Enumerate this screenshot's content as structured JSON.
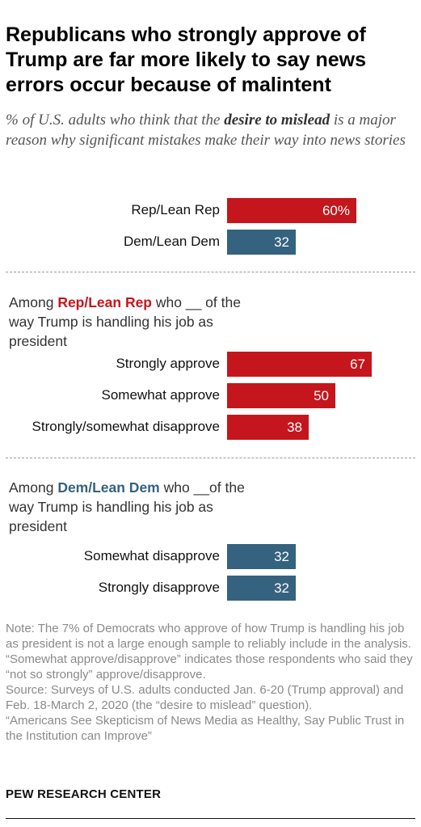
{
  "title": "Republicans who strongly approve of Trump are far more likely to say news errors occur because of malintent",
  "subtitle": {
    "before": "% of U.S. adults who think that the ",
    "emphasis": "desire to mislead",
    "after": " is a major reason why significant mistakes make their way into news stories"
  },
  "group_headers": {
    "rep": {
      "prefix": "Among ",
      "party": "Rep/Lean Rep",
      "suffix": " who __ of the way Trump is handling his job as president"
    },
    "dem": {
      "prefix": "Among ",
      "party": "Dem/Lean Dem",
      "suffix": " who __of the way Trump is handling his job as president"
    }
  },
  "colors": {
    "rep": "#c4161c",
    "dem": "#34627f"
  },
  "chart_data": {
    "type": "bar",
    "orientation": "horizontal",
    "xlim": [
      0,
      100
    ],
    "groups": [
      {
        "id": "overall",
        "categories": [
          "Rep/Lean Rep",
          "Dem/Lean Dem"
        ],
        "values": [
          60,
          32
        ],
        "value_labels": [
          "60%",
          "32"
        ],
        "colors": [
          "#c4161c",
          "#34627f"
        ]
      },
      {
        "id": "rep",
        "categories": [
          "Strongly approve",
          "Somewhat approve",
          "Strongly/somewhat disapprove"
        ],
        "values": [
          67,
          50,
          38
        ],
        "value_labels": [
          "67",
          "50",
          "38"
        ],
        "colors": [
          "#c4161c",
          "#c4161c",
          "#c4161c"
        ]
      },
      {
        "id": "dem",
        "categories": [
          "Somewhat disapprove",
          "Strongly disapprove"
        ],
        "values": [
          32,
          32
        ],
        "value_labels": [
          "32",
          "32"
        ],
        "colors": [
          "#34627f",
          "#34627f"
        ]
      }
    ]
  },
  "notes": [
    "Note: The 7% of Democrats who approve of how Trump is handling his job as president is not a large enough sample to reliably include in the analysis. “Somewhat approve/disapprove” indicates those respondents who said they “not so strongly” approve/disapprove.",
    "Source: Surveys of U.S. adults conducted Jan. 6-20 (Trump approval) and Feb. 18-March 2, 2020 (the “desire to mislead” question).",
    "“Americans See Skepticism of News Media as Healthy, Say Public Trust in the Institution can Improve”"
  ],
  "brand": "PEW RESEARCH CENTER"
}
